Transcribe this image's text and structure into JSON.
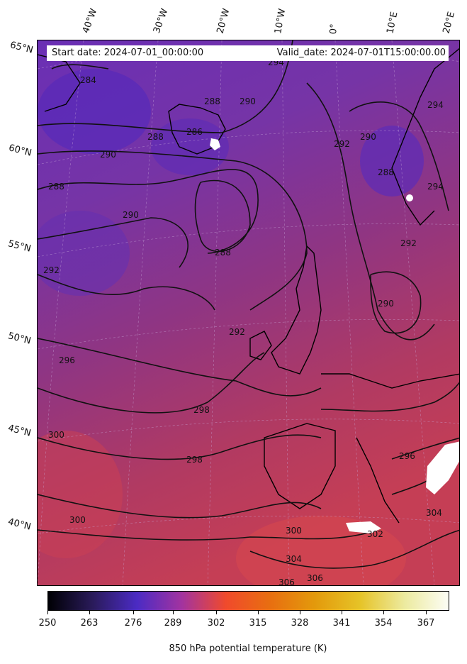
{
  "header": {
    "start_date": "Start date: 2024-07-01_00:00:00",
    "valid_date": "Valid_date: 2024-07-01T15:00:00.00"
  },
  "lon_labels": [
    "40°W",
    "30°W",
    "20°W",
    "10°W",
    "0°",
    "10°E",
    "20°E"
  ],
  "lat_labels": [
    "65°N",
    "60°N",
    "55°N",
    "50°N",
    "45°N",
    "40°N"
  ],
  "contour_labels": [
    "284",
    "286",
    "288",
    "288",
    "288",
    "288",
    "288",
    "290",
    "290",
    "290",
    "290",
    "290",
    "292",
    "292",
    "292",
    "292",
    "294",
    "294",
    "294",
    "296",
    "296",
    "298",
    "298",
    "300",
    "300",
    "300",
    "302",
    "304",
    "304",
    "306",
    "306"
  ],
  "colorbar": {
    "label": "850 hPa potential temperature (K)",
    "ticks": [
      "250",
      "263",
      "276",
      "289",
      "302",
      "315",
      "328",
      "341",
      "354",
      "367"
    ],
    "colors": [
      "#000004",
      "#2a1b5a",
      "#4b2bc4",
      "#a233a0",
      "#f04a2c",
      "#e86f10",
      "#e39a0c",
      "#e6c327",
      "#ecea9e",
      "#fcfdf5"
    ]
  }
}
